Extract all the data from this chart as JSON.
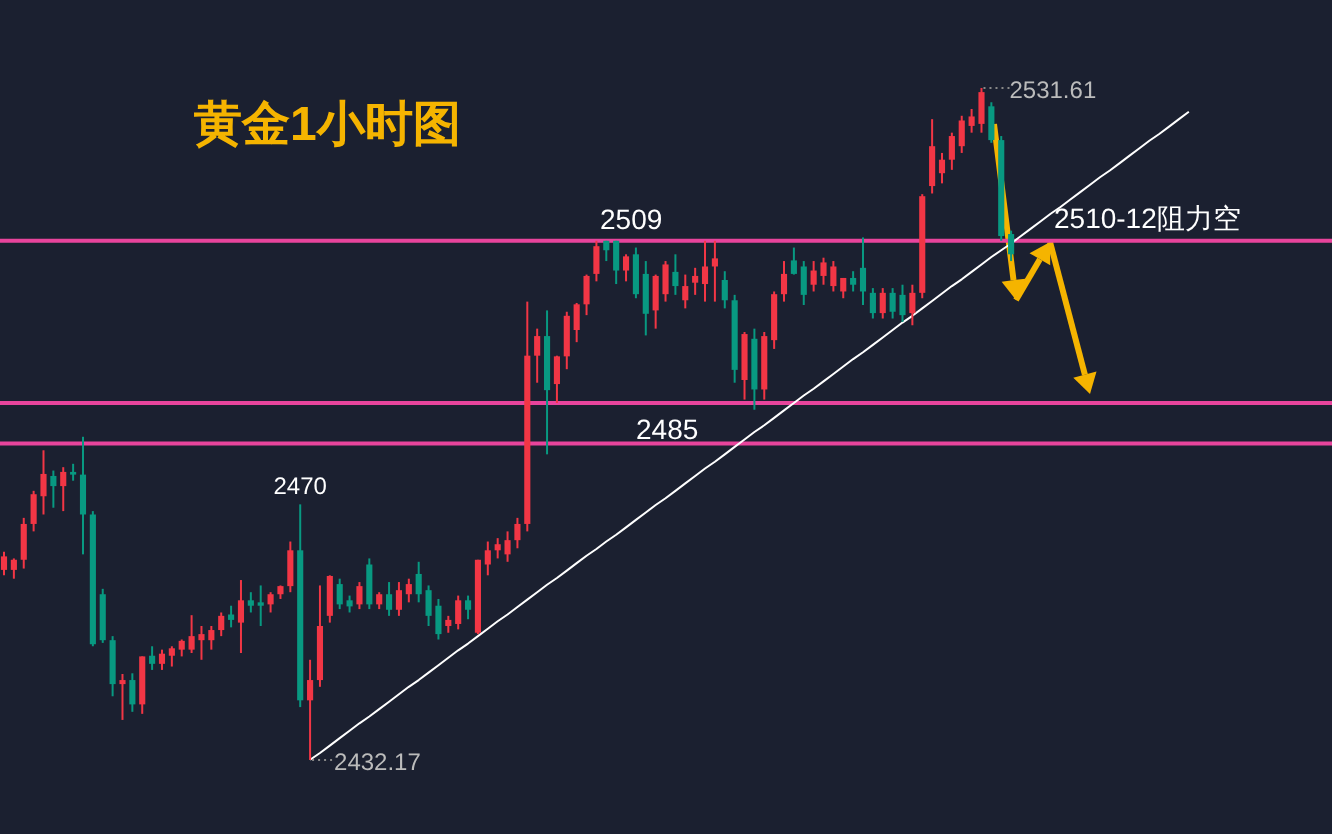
{
  "chart_data": {
    "type": "candlestick",
    "title": "黄金1小时图",
    "categories": [
      null,
      null,
      null,
      null,
      null,
      null,
      null,
      null,
      null,
      null,
      null,
      null,
      null,
      null,
      null,
      null,
      null,
      null,
      null,
      null,
      null,
      null,
      null,
      null,
      null,
      null,
      null,
      null,
      null,
      null,
      null,
      null,
      null,
      null,
      null,
      null,
      null,
      null,
      null,
      null,
      null,
      null,
      null,
      null,
      null,
      null,
      null,
      null,
      null,
      null,
      null,
      null,
      null,
      null,
      null,
      null,
      null,
      null,
      null,
      null,
      null,
      null,
      null,
      null,
      null,
      null,
      null,
      null,
      null,
      null,
      null,
      null,
      null,
      null,
      null,
      null,
      null,
      null,
      null,
      null,
      null,
      null,
      null,
      null,
      null,
      null,
      null,
      null,
      null,
      null,
      null,
      null,
      null,
      null,
      null,
      null,
      null,
      null,
      null,
      null,
      null,
      null,
      null,
      null,
      null,
      null,
      null,
      null,
      null,
      null,
      null,
      null,
      null,
      null,
      null,
      null,
      null,
      null,
      null,
      null,
      null
    ],
    "ohlc": [
      [
        2460.3,
        2463,
        2459.5,
        2462.3
      ],
      [
        2460.3,
        2462,
        2459,
        2461.8
      ],
      [
        2461.8,
        2468,
        2460.5,
        2467.1
      ],
      [
        2467.1,
        2472,
        2466,
        2471.5
      ],
      [
        2471.2,
        2478,
        2468.5,
        2474.5
      ],
      [
        2474.2,
        2475,
        2469.5,
        2472.7
      ],
      [
        2472.7,
        2475.5,
        2469,
        2474.8
      ],
      [
        2474.8,
        2476,
        2473.5,
        2474.4
      ],
      [
        2474.4,
        2480,
        2462.6,
        2468.5
      ],
      [
        2468.5,
        2469,
        2449,
        2449.3
      ],
      [
        2456.7,
        2457.5,
        2449.5,
        2449.9
      ],
      [
        2449.9,
        2450.5,
        2441.6,
        2443.4
      ],
      [
        2443.4,
        2444.9,
        2438.1,
        2444
      ],
      [
        2444,
        2445,
        2439.3,
        2440.4
      ],
      [
        2440.4,
        2447.5,
        2439,
        2447.5
      ],
      [
        2447.6,
        2449,
        2445.5,
        2446.4
      ],
      [
        2446.4,
        2448.5,
        2445.5,
        2447.9
      ],
      [
        2447.6,
        2449,
        2446,
        2448.7
      ],
      [
        2448.5,
        2450,
        2447.5,
        2449.8
      ],
      [
        2448.5,
        2453.6,
        2448,
        2450.5
      ],
      [
        2449.9,
        2452,
        2447,
        2450.8
      ],
      [
        2449.9,
        2452,
        2448.5,
        2451.4
      ],
      [
        2451.4,
        2454,
        2450.5,
        2453.5
      ],
      [
        2453.7,
        2455,
        2451.8,
        2452.9
      ],
      [
        2452.5,
        2458.8,
        2448,
        2455.8
      ],
      [
        2455.8,
        2457,
        2454,
        2455
      ],
      [
        2455.5,
        2458,
        2452,
        2455
      ],
      [
        2455.2,
        2457,
        2454,
        2456.7
      ],
      [
        2456.7,
        2458,
        2456,
        2457.9
      ],
      [
        2457.9,
        2464.5,
        2457,
        2463.2
      ],
      [
        2463.2,
        2470,
        2440,
        2441
      ],
      [
        2441,
        2447,
        2432.17,
        2444
      ],
      [
        2444,
        2458,
        2443,
        2452
      ],
      [
        2453.5,
        2459.5,
        2452.5,
        2459.4
      ],
      [
        2458.2,
        2459,
        2454.5,
        2455.2
      ],
      [
        2455.8,
        2456.5,
        2454,
        2454.9
      ],
      [
        2455.2,
        2458.5,
        2454.5,
        2457.9
      ],
      [
        2461.1,
        2462,
        2454.5,
        2455.2
      ],
      [
        2455.2,
        2457,
        2454.5,
        2456.7
      ],
      [
        2456.7,
        2458.5,
        2453.5,
        2454.4
      ],
      [
        2454.4,
        2458.5,
        2453.5,
        2457.3
      ],
      [
        2456.7,
        2459,
        2455.5,
        2458.2
      ],
      [
        2459.7,
        2461.5,
        2455.5,
        2456.7
      ],
      [
        2457.3,
        2458,
        2452,
        2453.5
      ],
      [
        2455,
        2456,
        2450,
        2450.8
      ],
      [
        2452,
        2453.5,
        2451,
        2452.9
      ],
      [
        2452.3,
        2456.5,
        2451.5,
        2455.8
      ],
      [
        2455.8,
        2456.5,
        2453,
        2454.4
      ],
      [
        2451,
        2461.8,
        2450.8,
        2461.8
      ],
      [
        2461.1,
        2464.5,
        2459.5,
        2463.2
      ],
      [
        2463.2,
        2465,
        2462,
        2464.1
      ],
      [
        2462.6,
        2466,
        2461.5,
        2464.7
      ],
      [
        2464.7,
        2468,
        2463.5,
        2467.1
      ],
      [
        2467.1,
        2500,
        2466,
        2492
      ],
      [
        2492,
        2496,
        2488,
        2494.9
      ],
      [
        2494.9,
        2498.7,
        2477.4,
        2486.9
      ],
      [
        2487.8,
        2492,
        2485,
        2491.9
      ],
      [
        2491.9,
        2498.5,
        2490,
        2497.9
      ],
      [
        2495.8,
        2499.8,
        2494,
        2499.6
      ],
      [
        2499.6,
        2504,
        2498,
        2503.8
      ],
      [
        2504.1,
        2509,
        2503,
        2508.2
      ],
      [
        2509,
        2509,
        2506,
        2507.6
      ],
      [
        2509,
        2509,
        2502.6,
        2504.6
      ],
      [
        2504.6,
        2507,
        2503,
        2506.7
      ],
      [
        2507,
        2508,
        2500.5,
        2501.1
      ],
      [
        2504.1,
        2506,
        2495,
        2498.2
      ],
      [
        2498.7,
        2504,
        2496,
        2503.8
      ],
      [
        2501.1,
        2506,
        2500,
        2505.5
      ],
      [
        2504.4,
        2507,
        2501,
        2502.3
      ],
      [
        2500.2,
        2504,
        2499,
        2502.3
      ],
      [
        2502.8,
        2505,
        2501,
        2503.8
      ],
      [
        2502.6,
        2509,
        2500,
        2505.2
      ],
      [
        2505.2,
        2509,
        2500,
        2506.4
      ],
      [
        2503.2,
        2504.5,
        2499,
        2500.2
      ],
      [
        2500.2,
        2501,
        2488,
        2489.9
      ],
      [
        2488.4,
        2495.5,
        2485.5,
        2495.2
      ],
      [
        2494.5,
        2496,
        2484,
        2487
      ],
      [
        2487,
        2495.5,
        2485.5,
        2494.9
      ],
      [
        2494.3,
        2501.5,
        2493,
        2501.1
      ],
      [
        2501.1,
        2506,
        2500,
        2504.1
      ],
      [
        2506.1,
        2508,
        2504,
        2504.1
      ],
      [
        2505.2,
        2506,
        2499.5,
        2501
      ],
      [
        2502.5,
        2506,
        2501.5,
        2504.6
      ],
      [
        2503.8,
        2506.5,
        2502.5,
        2505.8
      ],
      [
        2502.3,
        2506,
        2501.5,
        2505.2
      ],
      [
        2501.5,
        2503.5,
        2500.5,
        2503.5
      ],
      [
        2503.5,
        2504.5,
        2501.5,
        2502.5
      ],
      [
        2505,
        2509.5,
        2499.5,
        2501.5
      ],
      [
        2501.3,
        2502,
        2497.5,
        2498.3
      ],
      [
        2498.3,
        2502,
        2497.5,
        2501.3
      ],
      [
        2501.3,
        2502,
        2497.5,
        2498.5
      ],
      [
        2501,
        2502.5,
        2497,
        2498
      ],
      [
        2498.3,
        2502.5,
        2496.5,
        2501.3
      ],
      [
        2501.3,
        2515.9,
        2500.5,
        2515.6
      ],
      [
        2517.1,
        2527,
        2516,
        2523
      ],
      [
        2519,
        2522,
        2517.5,
        2521
      ],
      [
        2521,
        2525,
        2519.5,
        2524.5
      ],
      [
        2523,
        2527.5,
        2522,
        2526.8
      ],
      [
        2526,
        2528.5,
        2525,
        2527.4
      ],
      [
        2526.3,
        2531.61,
        2525,
        2531
      ],
      [
        2528.9,
        2529.5,
        2523.5,
        2523.9
      ],
      [
        2523.9,
        2524.5,
        2509,
        2509.7
      ],
      [
        2510,
        2510.5,
        2506,
        2507
      ],
      null,
      null,
      null,
      null,
      null,
      null,
      null,
      null,
      null,
      null,
      null,
      null,
      null,
      null,
      null,
      null,
      null,
      null
    ],
    "colors": [
      "#f23645",
      "#f23645",
      "#f23645",
      "#f23645",
      "#f23645",
      "#089981",
      "#f23645",
      "#089981",
      "#089981",
      "#089981",
      "#089981",
      "#089981",
      "#f23645",
      "#089981",
      "#f23645",
      "#089981",
      "#f23645",
      "#f23645",
      "#f23645",
      "#f23645",
      "#f23645",
      "#f23645",
      "#f23645",
      "#089981",
      "#f23645",
      "#089981",
      "#089981",
      "#f23645",
      "#f23645",
      "#f23645",
      "#089981",
      "#f23645",
      "#f23645",
      "#f23645",
      "#089981",
      "#089981",
      "#f23645",
      "#089981",
      "#f23645",
      "#089981",
      "#f23645",
      "#f23645",
      "#089981",
      "#089981",
      "#089981",
      "#f23645",
      "#f23645",
      "#089981",
      "#f23645",
      "#f23645",
      "#f23645",
      "#f23645",
      "#f23645",
      "#f23645",
      "#f23645",
      "#089981",
      "#f23645",
      "#f23645",
      "#f23645",
      "#f23645",
      "#f23645",
      "#089981",
      "#089981",
      "#f23645",
      "#089981",
      "#089981",
      "#f23645",
      "#f23645",
      "#089981",
      "#f23645",
      "#f23645",
      "#f23645",
      "#f23645",
      "#089981",
      "#089981",
      "#f23645",
      "#089981",
      "#f23645",
      "#f23645",
      "#f23645",
      "#089981",
      "#089981",
      "#f23645",
      "#f23645",
      "#f23645",
      "#f23645",
      "#089981",
      "#089981",
      "#089981",
      "#f23645",
      "#089981",
      "#089981",
      "#f23645",
      "#f23645",
      "#f23645",
      "#f23645",
      "#f23645",
      "#f23645",
      "#f23645",
      "#f23645",
      "#089981",
      "#089981",
      "#089981",
      null,
      null,
      null,
      null,
      null,
      null,
      null,
      null,
      null,
      null,
      null,
      null,
      null,
      null,
      null,
      null,
      null,
      null
    ],
    "series": [
      {
        "type": "line",
        "color": "#ffffff",
        "values": [
          null,
          null,
          null,
          null,
          null,
          null,
          null,
          null,
          null,
          null,
          null,
          null,
          null,
          null,
          null,
          null,
          null,
          null,
          null,
          null,
          null,
          null,
          null,
          null,
          null,
          null,
          null,
          null,
          null,
          null,
          null,
          2432.2,
          2433.2,
          2434.3,
          2435.4,
          2436.5,
          2437.6,
          2438.6,
          2439.7,
          2440.8,
          2441.9,
          2443.0,
          2444.0,
          2445.1,
          2446.2,
          2447.3,
          2448.4,
          2449.4,
          2450.5,
          2451.6,
          2452.7,
          2453.7,
          2454.8,
          2455.9,
          2457.0,
          2458.1,
          2459.1,
          2460.2,
          2461.3,
          2462.4,
          2463.4,
          2464.5,
          2465.5,
          2466.6,
          2467.7,
          2468.8,
          2469.9,
          2470.9,
          2472.0,
          2473.1,
          2474.2,
          2475.3,
          2476.3,
          2477.4,
          2478.5,
          2479.6,
          2480.7,
          2481.7,
          2482.8,
          2483.9,
          2485.0,
          2486.1,
          2487.1,
          2488.2,
          2489.3,
          2490.4,
          2491.5,
          2492.5,
          2493.6,
          2494.7,
          2495.8,
          2496.9,
          2497.9,
          2499.0,
          2500.1,
          2501.2,
          2502.3,
          2503.3,
          2504.4,
          2505.5,
          2506.6,
          2507.6,
          2508.6,
          2509.7,
          2510.8,
          2511.9,
          2513.0,
          2514.0,
          2515.1,
          2516.2,
          2517.3,
          2518.4,
          2519.4,
          2520.5,
          2521.6,
          2522.7,
          2523.8,
          2524.8,
          2525.9,
          2527.0,
          2528.1
        ]
      }
    ],
    "ref_lines": [
      {
        "axis": "y",
        "value": 2509,
        "label": "2509",
        "color": "#e8449c"
      },
      {
        "axis": "y",
        "value": 2485,
        "label": "2485",
        "color": "#e8449c"
      },
      {
        "axis": "y",
        "value": 2479,
        "color": "#e8449c"
      }
    ],
    "annotations": [
      {
        "text": "2470",
        "y": 2470
      },
      "2432.17",
      "2531.61",
      "2510-12阻力空"
    ]
  }
}
